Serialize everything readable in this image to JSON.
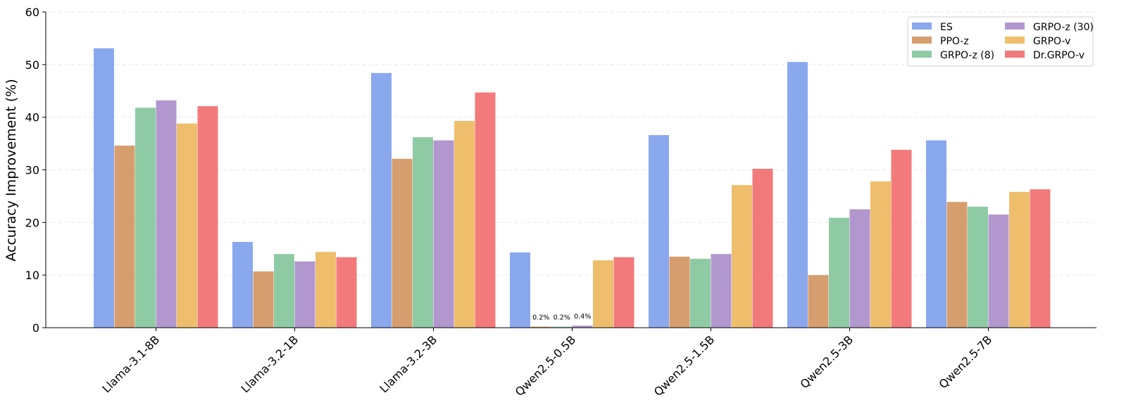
{
  "chart_data": {
    "type": "bar",
    "title": "",
    "xlabel": "",
    "ylabel": "Accuracy Improvement (%)",
    "ylim": [
      0,
      60
    ],
    "yticks": [
      0,
      10,
      20,
      30,
      40,
      50,
      60
    ],
    "grid": "horizontal dashed",
    "legend_placement": "top-right",
    "categories": [
      "Llama-3.1-8B",
      "Llama-3.2-1B",
      "Llama-3.2-3B",
      "Qwen2.5-0.5B",
      "Qwen2.5-1.5B",
      "Qwen2.5-3B",
      "Qwen2.5-7B"
    ],
    "series": [
      {
        "name": "ES",
        "color": "#8aa8ee",
        "values": [
          53.1,
          16.3,
          48.4,
          14.3,
          36.6,
          50.5,
          35.6
        ]
      },
      {
        "name": "PPO-z",
        "color": "#d69e6e",
        "values": [
          34.6,
          10.7,
          32.1,
          0.2,
          13.5,
          10.0,
          23.9
        ]
      },
      {
        "name": "GRPO-z (8)",
        "color": "#8ecba5",
        "values": [
          41.8,
          14.0,
          36.2,
          0.2,
          13.1,
          20.9,
          23.0
        ]
      },
      {
        "name": "GRPO-z (30)",
        "color": "#b297cf",
        "values": [
          43.2,
          12.6,
          35.6,
          0.4,
          14.0,
          22.5,
          21.5
        ]
      },
      {
        "name": "GRPO-v",
        "color": "#efbe6c",
        "values": [
          38.8,
          14.4,
          39.3,
          12.8,
          27.1,
          27.8,
          25.8
        ]
      },
      {
        "name": "Dr.GRPO-v",
        "color": "#f27a7a",
        "values": [
          42.1,
          13.4,
          44.7,
          13.4,
          30.2,
          33.8,
          26.3
        ]
      }
    ],
    "annotations": [
      {
        "category": "Qwen2.5-0.5B",
        "series": "PPO-z",
        "text": "0.2%"
      },
      {
        "category": "Qwen2.5-0.5B",
        "series": "GRPO-z (8)",
        "text": "0.2%"
      },
      {
        "category": "Qwen2.5-0.5B",
        "series": "GRPO-z (30)",
        "text": "0.4%"
      }
    ]
  }
}
